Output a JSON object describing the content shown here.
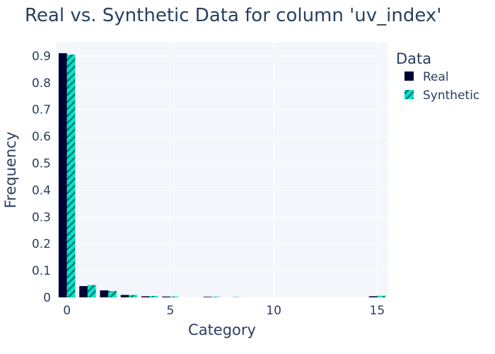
{
  "chart_data": {
    "type": "bar",
    "title": "Real vs. Synthetic Data for column 'uv_index'",
    "xlabel": "Category",
    "ylabel": "Frequency",
    "xlim": [
      -0.5,
      15.5
    ],
    "ylim": [
      0,
      0.95
    ],
    "x_ticks": [
      0,
      5,
      10,
      15
    ],
    "y_ticks": [
      0,
      0.1,
      0.2,
      0.3,
      0.4,
      0.5,
      0.6,
      0.7,
      0.8,
      0.9
    ],
    "grid": true,
    "legend": {
      "title": "Data",
      "placement": "right-top"
    },
    "x": [
      0,
      1,
      2,
      3,
      4,
      5,
      6,
      7,
      8,
      9,
      10,
      11,
      12,
      13,
      14,
      15
    ],
    "series": [
      {
        "name": "Real",
        "color": "#000033",
        "pattern": "solid",
        "values": [
          0.91,
          0.042,
          0.026,
          0.009,
          0.004,
          0.003,
          0.0,
          0.002,
          0.0,
          0.0,
          0.0,
          0.0,
          0.0,
          0.0,
          0.0,
          0.004
        ]
      },
      {
        "name": "Synthetic",
        "color": "#00e5cc",
        "pattern": "diagonal-hatch",
        "values": [
          0.905,
          0.046,
          0.024,
          0.009,
          0.005,
          0.003,
          0.0,
          0.002,
          0.001,
          0.0,
          0.0,
          0.0,
          0.0,
          0.0,
          0.0,
          0.006
        ]
      }
    ]
  }
}
